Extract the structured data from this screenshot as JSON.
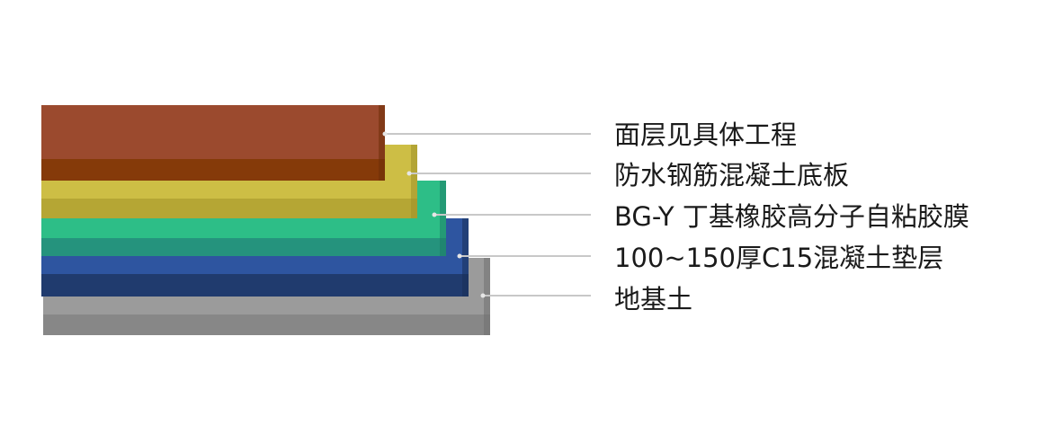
{
  "diagram": {
    "layers": [
      {
        "id": "surface",
        "label": "面层见具体工程",
        "top_color": "#9B4A2E",
        "front_color": "#853A09",
        "side_color": "#6E2E08"
      },
      {
        "id": "concrete-slab",
        "label": "防水钢筋混凝土底板",
        "top_color": "#CDBE45",
        "front_color": "#B5A634",
        "side_color": "#9E8F28"
      },
      {
        "id": "membrane",
        "label": "BG-Y 丁基橡胶高分子自粘胶膜",
        "top_color": "#2DBE87",
        "front_color": "#25937D",
        "side_color": "#1E7C66"
      },
      {
        "id": "cushion",
        "label": "100~150厚C15混凝土垫层",
        "top_color": "#2E55A0",
        "front_color": "#203B6E",
        "side_color": "#1A2F58"
      },
      {
        "id": "subgrade",
        "label": "地基土",
        "top_color": "#9B9B9B",
        "front_color": "#878787",
        "side_color": "#6F6F6F"
      }
    ],
    "leader_color": "#C8C8C8"
  }
}
